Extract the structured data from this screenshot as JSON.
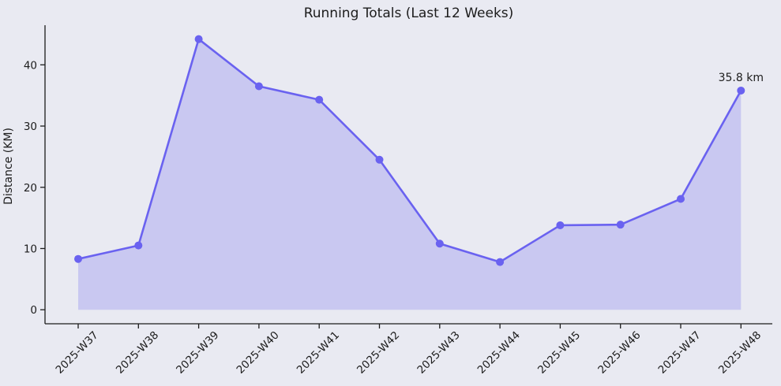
{
  "chart_data": {
    "type": "area",
    "title": "Running Totals (Last 12 Weeks)",
    "xlabel": "",
    "ylabel": "Distance (KM)",
    "categories": [
      "2025-W37",
      "2025-W38",
      "2025-W39",
      "2025-W40",
      "2025-W41",
      "2025-W42",
      "2025-W43",
      "2025-W44",
      "2025-W45",
      "2025-W46",
      "2025-W47",
      "2025-W48"
    ],
    "values": [
      8.3,
      10.5,
      44.2,
      36.5,
      34.3,
      24.5,
      10.8,
      7.8,
      13.8,
      13.9,
      18.1,
      35.8
    ],
    "yticks": [
      0,
      10,
      20,
      30,
      40
    ],
    "ylim": [
      -2.3,
      46.5
    ],
    "grid": false,
    "legend": "none",
    "markers": true,
    "x_tick_rotation_deg": 45,
    "annotation": {
      "text": "35.8 km",
      "index": 11
    },
    "colors": {
      "line": "#6a62f0",
      "marker": "#6a62f0",
      "fill": "#6a62f0",
      "fill_opacity": 0.25,
      "background": "#e9eaf2",
      "axis": "#1c1c1c",
      "text": "#1c1c1c"
    }
  }
}
